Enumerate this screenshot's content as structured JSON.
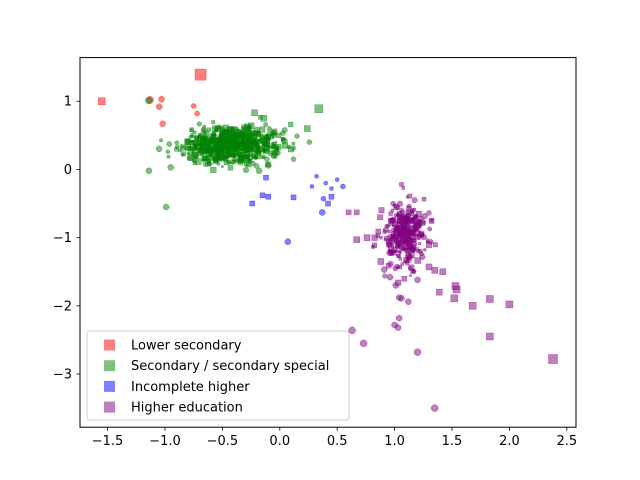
{
  "chart_data": {
    "type": "scatter",
    "title": "",
    "xlabel": "",
    "ylabel": "",
    "xlim": [
      -1.74,
      2.58
    ],
    "ylim": [
      -3.78,
      1.64
    ],
    "xticks": [
      {
        "value": -1.5,
        "label": "−1.5"
      },
      {
        "value": -1.0,
        "label": "−1.0"
      },
      {
        "value": -0.5,
        "label": "−0.5"
      },
      {
        "value": 0.0,
        "label": "0.0"
      },
      {
        "value": 0.5,
        "label": "0.5"
      },
      {
        "value": 1.0,
        "label": "1.0"
      },
      {
        "value": 1.5,
        "label": "1.5"
      },
      {
        "value": 2.0,
        "label": "2.0"
      },
      {
        "value": 2.5,
        "label": "2.5"
      }
    ],
    "yticks": [
      {
        "value": 1,
        "label": "1"
      },
      {
        "value": 0,
        "label": "0"
      },
      {
        "value": -1,
        "label": "−1"
      },
      {
        "value": -2,
        "label": "−2"
      },
      {
        "value": -3,
        "label": "−3"
      }
    ],
    "legend_position": "lower-left",
    "grid": false,
    "series": [
      {
        "name": "Lower secondary",
        "color": "#ff0000",
        "alpha": 0.5,
        "points": [
          {
            "x": -1.55,
            "y": 1.0,
            "m": "s",
            "s": 3.5
          },
          {
            "x": -0.69,
            "y": 1.39,
            "m": "s",
            "s": 5.5
          },
          {
            "x": -1.13,
            "y": 1.02,
            "m": "o",
            "s": 3.5
          },
          {
            "x": -1.03,
            "y": 1.03,
            "m": "o",
            "s": 3
          },
          {
            "x": -1.05,
            "y": 0.92,
            "m": "o",
            "s": 3
          },
          {
            "x": -1.02,
            "y": 0.67,
            "m": "o",
            "s": 3
          },
          {
            "x": -0.75,
            "y": 0.93,
            "m": "o",
            "s": 2.5
          },
          {
            "x": -0.72,
            "y": 0.82,
            "m": "o",
            "s": 2.5
          }
        ]
      },
      {
        "name": "Secondary / secondary special",
        "color": "#008000",
        "alpha": 0.5,
        "points": [
          {
            "x": -1.14,
            "y": 1.01,
            "m": "o",
            "s": 3.5
          },
          {
            "x": -1.14,
            "y": -0.02,
            "m": "o",
            "s": 3
          },
          {
            "x": -0.99,
            "y": -0.55,
            "m": "o",
            "s": 3
          },
          {
            "x": -0.95,
            "y": 0.03,
            "m": "o",
            "s": 3
          },
          {
            "x": 0.34,
            "y": 0.89,
            "m": "s",
            "s": 4
          },
          {
            "x": -0.14,
            "y": 0.75,
            "m": "s",
            "s": 3
          },
          {
            "x": 0.24,
            "y": 0.6,
            "m": "s",
            "s": 3
          },
          {
            "x": 0.04,
            "y": 0.42,
            "m": "o",
            "s": 3
          },
          {
            "x": -0.1,
            "y": 0.06,
            "m": "o",
            "s": 3
          },
          {
            "x": -0.18,
            "y": -0.02,
            "m": "o",
            "s": 3
          },
          {
            "x": -0.78,
            "y": 0.17,
            "m": "o",
            "s": 3
          },
          {
            "x": 0.12,
            "y": 0.15,
            "m": "o",
            "s": 2.5
          },
          {
            "x": -0.05,
            "y": 0.55,
            "m": "s",
            "s": 3
          },
          {
            "x": -0.22,
            "y": 0.83,
            "m": "s",
            "s": 3
          }
        ],
        "cluster": {
          "cx": -0.42,
          "cy": 0.36,
          "sx": 0.22,
          "sy": 0.13,
          "n": 640,
          "seed": 7
        }
      },
      {
        "name": "Incomplete higher",
        "color": "#0000ff",
        "alpha": 0.5,
        "points": [
          {
            "x": 0.07,
            "y": -1.06,
            "m": "o",
            "s": 3
          },
          {
            "x": 0.37,
            "y": -0.63,
            "m": "o",
            "s": 3
          },
          {
            "x": -0.24,
            "y": -0.5,
            "m": "s",
            "s": 2.5
          },
          {
            "x": -0.15,
            "y": -0.38,
            "m": "s",
            "s": 2.5
          },
          {
            "x": -0.1,
            "y": -0.4,
            "m": "s",
            "s": 2.5
          },
          {
            "x": 0.12,
            "y": -0.41,
            "m": "s",
            "s": 2.5
          },
          {
            "x": -0.12,
            "y": -0.12,
            "m": "s",
            "s": 2.5
          },
          {
            "x": 0.28,
            "y": -0.25,
            "m": "o",
            "s": 2
          },
          {
            "x": 0.32,
            "y": -0.1,
            "m": "o",
            "s": 2
          },
          {
            "x": 0.4,
            "y": -0.2,
            "m": "o",
            "s": 2
          },
          {
            "x": 0.45,
            "y": -0.28,
            "m": "o",
            "s": 2
          },
          {
            "x": 0.38,
            "y": -0.43,
            "m": "o",
            "s": 2.5
          },
          {
            "x": 0.45,
            "y": -0.4,
            "m": "s",
            "s": 2.5
          },
          {
            "x": 0.55,
            "y": -0.25,
            "m": "o",
            "s": 2.5
          },
          {
            "x": 0.5,
            "y": -0.15,
            "m": "o",
            "s": 2
          },
          {
            "x": 0.42,
            "y": -0.5,
            "m": "s",
            "s": 2.5
          }
        ]
      },
      {
        "name": "Higher education",
        "color": "#800080",
        "alpha": 0.5,
        "points": [
          {
            "x": 1.35,
            "y": -3.5,
            "m": "o",
            "s": 3.5
          },
          {
            "x": 2.38,
            "y": -2.78,
            "m": "s",
            "s": 4.5
          },
          {
            "x": 0.63,
            "y": -2.36,
            "m": "o",
            "s": 3.5
          },
          {
            "x": 0.73,
            "y": -2.55,
            "m": "o",
            "s": 3.5
          },
          {
            "x": 1.2,
            "y": -2.68,
            "m": "o",
            "s": 3.5
          },
          {
            "x": 1.83,
            "y": -2.45,
            "m": "s",
            "s": 3.5
          },
          {
            "x": 1.83,
            "y": -1.9,
            "m": "s",
            "s": 3.5
          },
          {
            "x": 2.0,
            "y": -1.98,
            "m": "s",
            "s": 3.5
          },
          {
            "x": 1.68,
            "y": -2.0,
            "m": "s",
            "s": 3.5
          },
          {
            "x": 1.52,
            "y": -1.89,
            "m": "s",
            "s": 3.5
          },
          {
            "x": 1.54,
            "y": -1.76,
            "m": "s",
            "s": 3.5
          },
          {
            "x": 1.53,
            "y": -1.71,
            "m": "s",
            "s": 3.5
          },
          {
            "x": 1.39,
            "y": -1.8,
            "m": "s",
            "s": 3
          },
          {
            "x": 1.42,
            "y": -1.5,
            "m": "s",
            "s": 3
          },
          {
            "x": 1.0,
            "y": -2.28,
            "m": "o",
            "s": 3
          },
          {
            "x": 1.03,
            "y": -2.32,
            "m": "o",
            "s": 3
          },
          {
            "x": 1.04,
            "y": -2.18,
            "m": "o",
            "s": 3
          },
          {
            "x": 1.12,
            "y": -1.94,
            "m": "o",
            "s": 3
          },
          {
            "x": 1.04,
            "y": -1.88,
            "m": "o",
            "s": 3
          },
          {
            "x": 1.06,
            "y": -1.89,
            "m": "o",
            "s": 3
          },
          {
            "x": 1.01,
            "y": -1.7,
            "m": "o",
            "s": 3
          },
          {
            "x": 0.96,
            "y": -1.58,
            "m": "o",
            "s": 3
          },
          {
            "x": 0.91,
            "y": -1.47,
            "m": "o",
            "s": 3
          },
          {
            "x": 0.88,
            "y": -1.35,
            "m": "s",
            "s": 3
          },
          {
            "x": 0.76,
            "y": -1.0,
            "m": "s",
            "s": 3
          },
          {
            "x": 0.67,
            "y": -1.03,
            "m": "s",
            "s": 3
          },
          {
            "x": 0.6,
            "y": -0.63,
            "m": "s",
            "s": 2.5
          },
          {
            "x": 0.67,
            "y": -0.63,
            "m": "s",
            "s": 2.5
          },
          {
            "x": 1.06,
            "y": -0.22,
            "m": "s",
            "s": 2
          },
          {
            "x": 1.35,
            "y": -1.48,
            "m": "s",
            "s": 3
          },
          {
            "x": 1.3,
            "y": -1.43,
            "m": "s",
            "s": 3
          },
          {
            "x": 1.2,
            "y": -1.62,
            "m": "o",
            "s": 3
          }
        ],
        "cluster": {
          "cx": 1.08,
          "cy": -0.98,
          "sx": 0.1,
          "sy": 0.23,
          "n": 300,
          "seed": 23
        }
      }
    ]
  }
}
